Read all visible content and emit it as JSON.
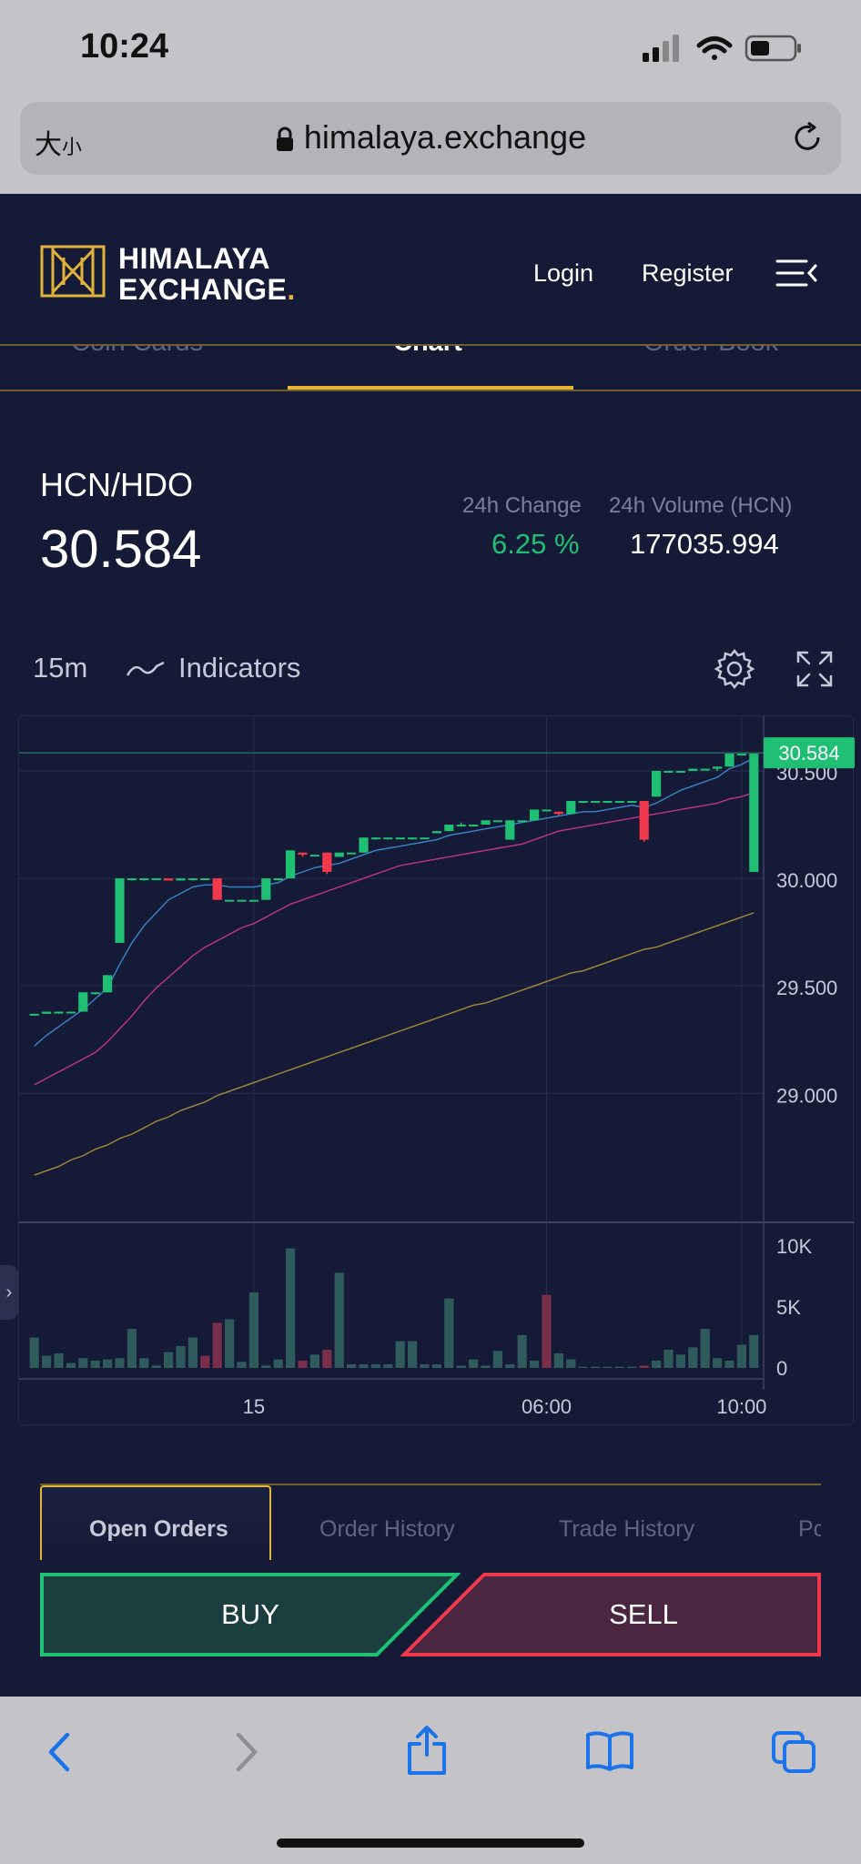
{
  "status_bar": {
    "time": "10:24"
  },
  "browser": {
    "text_size_label": "大",
    "text_size_small": "小",
    "url": "himalaya.exchange"
  },
  "header": {
    "logo_line1": "HIMALAYA",
    "logo_line2": "EXCHANGE",
    "logo_dot": ".",
    "login": "Login",
    "register": "Register",
    "accent_color": "#e2b33b"
  },
  "section_tabs": [
    {
      "label": "Coin Cards",
      "active": false
    },
    {
      "label": "Chart",
      "active": true
    },
    {
      "label": "Order Book",
      "active": false
    }
  ],
  "ticker": {
    "pair": "HCN/HDO",
    "price": "30.584",
    "change_label": "24h Change",
    "change_value": "6.25 %",
    "volume_label": "24h Volume (HCN)",
    "volume_value": "177035.994"
  },
  "chart_toolbar": {
    "interval": "15m",
    "indicators_label": "Indicators"
  },
  "chart_data": {
    "type": "candlestick",
    "price_axis": {
      "ticks": [
        "29.000",
        "29.500",
        "30.000",
        "30.500"
      ],
      "tick_values": [
        29.0,
        29.5,
        30.0,
        30.5
      ],
      "range": [
        28.4,
        30.72
      ]
    },
    "last_price_label": "30.584",
    "last_price": 30.584,
    "volume_axis": {
      "ticks": [
        "0",
        "5K",
        "10K"
      ],
      "tick_values": [
        0,
        5000,
        10000
      ],
      "range": [
        0,
        10000
      ]
    },
    "time_axis": {
      "ticks": [
        "15",
        "06:00",
        "10:00"
      ]
    },
    "time_tick_index": [
      18,
      42,
      58
    ],
    "up_color": "#1fbf74",
    "down_color": "#f0394c",
    "candles": [
      [
        29.37,
        29.37,
        29.37,
        29.37
      ],
      [
        29.37,
        29.38,
        29.37,
        29.38
      ],
      [
        29.38,
        29.38,
        29.37,
        29.38
      ],
      [
        29.38,
        29.38,
        29.38,
        29.38
      ],
      [
        29.38,
        29.47,
        29.38,
        29.47
      ],
      [
        29.47,
        29.47,
        29.46,
        29.47
      ],
      [
        29.47,
        29.55,
        29.47,
        29.55
      ],
      [
        29.7,
        30.0,
        29.7,
        30.0
      ],
      [
        30.0,
        30.0,
        29.99,
        30.0
      ],
      [
        30.0,
        30.0,
        29.99,
        30.0
      ],
      [
        30.0,
        30.0,
        30.0,
        30.0
      ],
      [
        30.0,
        30.0,
        29.99,
        29.99
      ],
      [
        29.99,
        30.0,
        29.99,
        30.0
      ],
      [
        30.0,
        30.0,
        29.99,
        30.0
      ],
      [
        30.0,
        30.0,
        30.0,
        30.0
      ],
      [
        30.0,
        30.0,
        29.9,
        29.9
      ],
      [
        29.9,
        29.9,
        29.9,
        29.9
      ],
      [
        29.9,
        29.9,
        29.9,
        29.9
      ],
      [
        29.9,
        29.9,
        29.9,
        29.9
      ],
      [
        29.9,
        30.0,
        29.9,
        30.0
      ],
      [
        30.0,
        30.0,
        30.0,
        30.0
      ],
      [
        30.0,
        30.13,
        30.0,
        30.13
      ],
      [
        30.12,
        30.12,
        30.1,
        30.11
      ],
      [
        30.11,
        30.11,
        30.11,
        30.11
      ],
      [
        30.12,
        30.12,
        30.02,
        30.03
      ],
      [
        30.1,
        30.12,
        30.1,
        30.12
      ],
      [
        30.12,
        30.12,
        30.12,
        30.12
      ],
      [
        30.12,
        30.19,
        30.12,
        30.19
      ],
      [
        30.19,
        30.19,
        30.18,
        30.19
      ],
      [
        30.19,
        30.19,
        30.19,
        30.19
      ],
      [
        30.19,
        30.19,
        30.19,
        30.19
      ],
      [
        30.19,
        30.19,
        30.18,
        30.19
      ],
      [
        30.19,
        30.19,
        30.19,
        30.19
      ],
      [
        30.21,
        30.22,
        30.21,
        30.22
      ],
      [
        30.22,
        30.25,
        30.22,
        30.25
      ],
      [
        30.25,
        30.26,
        30.24,
        30.25
      ],
      [
        30.25,
        30.25,
        30.25,
        30.25
      ],
      [
        30.25,
        30.27,
        30.25,
        30.27
      ],
      [
        30.27,
        30.27,
        30.27,
        30.27
      ],
      [
        30.18,
        30.27,
        30.18,
        30.27
      ],
      [
        30.27,
        30.27,
        30.27,
        30.27
      ],
      [
        30.27,
        30.32,
        30.27,
        30.32
      ],
      [
        30.32,
        30.32,
        30.32,
        30.32
      ],
      [
        30.31,
        30.31,
        30.29,
        30.3
      ],
      [
        30.3,
        30.36,
        30.3,
        30.36
      ],
      [
        30.36,
        30.36,
        30.35,
        30.36
      ],
      [
        30.36,
        30.36,
        30.36,
        30.36
      ],
      [
        30.36,
        30.36,
        30.36,
        30.36
      ],
      [
        30.36,
        30.36,
        30.36,
        30.36
      ],
      [
        30.36,
        30.36,
        30.36,
        30.36
      ],
      [
        30.36,
        30.36,
        30.17,
        30.18
      ],
      [
        30.38,
        30.5,
        30.38,
        30.5
      ],
      [
        30.5,
        30.5,
        30.5,
        30.5
      ],
      [
        30.5,
        30.5,
        30.5,
        30.5
      ],
      [
        30.5,
        30.51,
        30.5,
        30.51
      ],
      [
        30.51,
        30.51,
        30.51,
        30.51
      ],
      [
        30.51,
        30.52,
        30.5,
        30.52
      ],
      [
        30.52,
        30.58,
        30.52,
        30.58
      ],
      [
        30.58,
        30.58,
        30.58,
        30.58
      ],
      [
        30.03,
        30.58,
        30.03,
        30.58
      ]
    ],
    "volumes": [
      2500,
      1000,
      1200,
      400,
      800,
      600,
      700,
      800,
      3200,
      800,
      200,
      1300,
      1800,
      2500,
      1000,
      3700,
      4000,
      500,
      6200,
      200,
      700,
      9800,
      600,
      1100,
      1500,
      7800,
      300,
      300,
      300,
      300,
      2200,
      2200,
      300,
      300,
      5700,
      200,
      700,
      200,
      1400,
      300,
      2700,
      600,
      6000,
      1200,
      700,
      100,
      100,
      100,
      100,
      100,
      200,
      600,
      1500,
      1100,
      1700,
      3200,
      800,
      600,
      1900,
      2700
    ],
    "volume_is_down": [
      false,
      false,
      false,
      false,
      false,
      false,
      false,
      false,
      false,
      false,
      false,
      false,
      false,
      false,
      true,
      true,
      false,
      false,
      false,
      false,
      false,
      false,
      true,
      false,
      true,
      false,
      false,
      false,
      false,
      false,
      false,
      false,
      false,
      false,
      false,
      false,
      false,
      false,
      false,
      false,
      false,
      false,
      true,
      false,
      false,
      false,
      false,
      false,
      false,
      false,
      true,
      false,
      false,
      false,
      false,
      false,
      false,
      false,
      false,
      false
    ],
    "moving_averages": [
      {
        "color": "#3a86c8",
        "values": [
          29.22,
          29.27,
          29.31,
          29.35,
          29.39,
          29.44,
          29.49,
          29.6,
          29.7,
          29.78,
          29.84,
          29.9,
          29.93,
          29.96,
          29.97,
          29.97,
          29.96,
          29.96,
          29.96,
          29.97,
          29.98,
          30.01,
          30.03,
          30.05,
          30.06,
          30.07,
          30.09,
          30.11,
          30.13,
          30.14,
          30.15,
          30.16,
          30.17,
          30.18,
          30.2,
          30.21,
          30.22,
          30.23,
          30.24,
          30.25,
          30.26,
          30.27,
          30.28,
          30.29,
          30.3,
          30.31,
          30.31,
          30.32,
          30.33,
          30.34,
          30.33,
          30.35,
          30.38,
          30.41,
          30.43,
          30.45,
          30.47,
          30.51,
          30.53,
          30.56
        ]
      },
      {
        "color": "#c0338e",
        "values": [
          29.04,
          29.07,
          29.1,
          29.13,
          29.16,
          29.19,
          29.24,
          29.3,
          29.36,
          29.43,
          29.49,
          29.54,
          29.59,
          29.64,
          29.68,
          29.71,
          29.74,
          29.77,
          29.79,
          29.82,
          29.85,
          29.88,
          29.9,
          29.92,
          29.94,
          29.96,
          29.98,
          30.0,
          30.02,
          30.04,
          30.06,
          30.07,
          30.08,
          30.09,
          30.1,
          30.11,
          30.12,
          30.13,
          30.14,
          30.15,
          30.16,
          30.18,
          30.2,
          30.22,
          30.23,
          30.24,
          30.25,
          30.26,
          30.27,
          30.28,
          30.29,
          30.3,
          30.31,
          30.32,
          30.33,
          30.34,
          30.35,
          30.37,
          30.38,
          30.4
        ]
      },
      {
        "color": "#a58a3a",
        "values": [
          28.62,
          28.64,
          28.66,
          28.69,
          28.71,
          28.74,
          28.76,
          28.79,
          28.81,
          28.84,
          28.87,
          28.89,
          28.92,
          28.94,
          28.96,
          28.99,
          29.01,
          29.03,
          29.05,
          29.07,
          29.09,
          29.11,
          29.13,
          29.15,
          29.17,
          29.19,
          29.21,
          29.23,
          29.25,
          29.27,
          29.29,
          29.31,
          29.33,
          29.35,
          29.37,
          29.39,
          29.41,
          29.42,
          29.44,
          29.46,
          29.48,
          29.5,
          29.52,
          29.54,
          29.56,
          29.57,
          29.59,
          29.61,
          29.63,
          29.65,
          29.67,
          29.68,
          29.7,
          29.72,
          29.74,
          29.76,
          29.78,
          29.8,
          29.82,
          29.84
        ]
      }
    ]
  },
  "order_tabs": [
    {
      "label": "Open Orders",
      "active": true
    },
    {
      "label": "Order History",
      "active": false
    },
    {
      "label": "Trade History",
      "active": false
    },
    {
      "label": "Pc",
      "active": false
    }
  ],
  "actions": {
    "buy": "BUY",
    "sell": "SELL",
    "buy_color": "#1fbf74",
    "sell_color": "#f0394c"
  }
}
